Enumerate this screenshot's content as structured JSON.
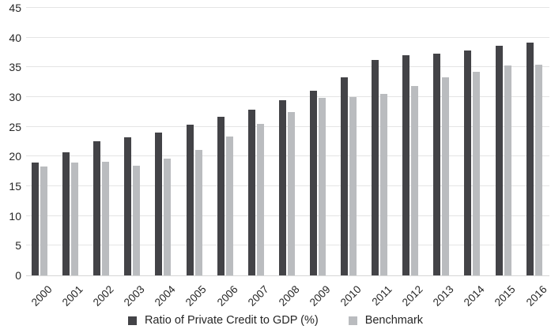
{
  "chart_data": {
    "type": "bar",
    "title": "",
    "xlabel": "",
    "ylabel": "",
    "categories": [
      "2000",
      "2001",
      "2002",
      "2003",
      "2004",
      "2005",
      "2006",
      "2007",
      "2008",
      "2009",
      "2010",
      "2011",
      "2012",
      "2013",
      "2014",
      "2015",
      "2016"
    ],
    "series": [
      {
        "name": "Ratio of Private Credit to GDP (%)",
        "color": "#434347",
        "values": [
          19.0,
          20.7,
          22.6,
          23.2,
          24.0,
          25.4,
          26.7,
          27.9,
          29.5,
          31.0,
          33.3,
          36.3,
          37.0,
          37.3,
          37.9,
          38.6,
          39.2
        ]
      },
      {
        "name": "Benchmark",
        "color": "#babcbf",
        "values": [
          18.3,
          19.0,
          19.1,
          18.5,
          19.6,
          21.1,
          23.4,
          25.5,
          27.5,
          29.9,
          30.0,
          30.5,
          31.9,
          33.3,
          34.3,
          35.3,
          35.4
        ]
      }
    ],
    "ylim": [
      0,
      45
    ],
    "yticks": [
      0,
      5,
      10,
      15,
      20,
      25,
      30,
      35,
      40,
      45
    ],
    "grid": true,
    "legend_position": "bottom"
  },
  "colors": {
    "gridline": "#e4e4e4",
    "axis_line": "#d6d6d6",
    "text": "#262626",
    "background": "#ffffff"
  }
}
